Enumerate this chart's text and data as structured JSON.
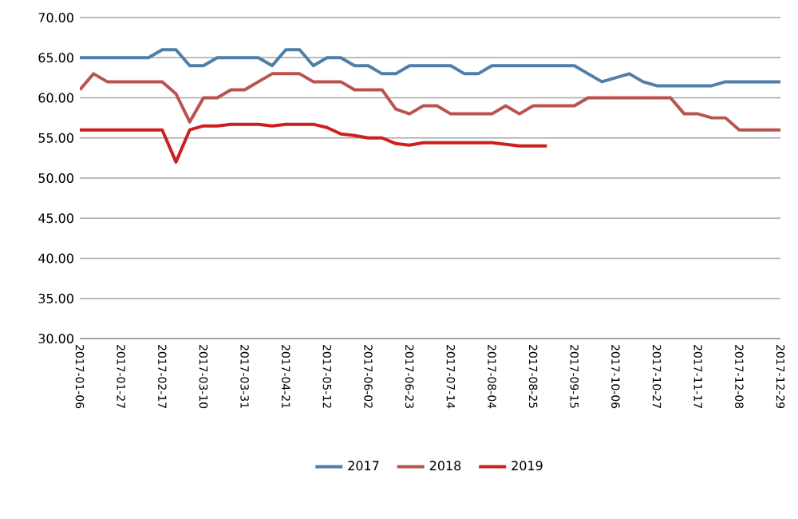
{
  "chart_data": {
    "type": "line",
    "categories": [
      "2017-01-06",
      null,
      null,
      "2017-01-27",
      null,
      null,
      "2017-02-17",
      null,
      null,
      "2017-03-10",
      null,
      null,
      "2017-03-31",
      null,
      null,
      "2017-04-21",
      null,
      null,
      "2017-05-12",
      null,
      null,
      "2017-06-02",
      null,
      null,
      "2017-06-23",
      null,
      null,
      "2017-07-14",
      null,
      null,
      "2017-08-04",
      null,
      null,
      "2017-08-25",
      null,
      null,
      "2017-09-15",
      null,
      null,
      "2017-10-06",
      null,
      null,
      "2017-10-27",
      null,
      null,
      "2017-11-17",
      null,
      null,
      "2017-12-08",
      null,
      null,
      "2017-12-29"
    ],
    "series": [
      {
        "name": "2017",
        "color": "#4f7fa8",
        "values": [
          65,
          65,
          65,
          65,
          65,
          65,
          66,
          66,
          64,
          64,
          65,
          65,
          65,
          65,
          64,
          66,
          66,
          64,
          65,
          65,
          64,
          64,
          63,
          63,
          64,
          64,
          64,
          64,
          63,
          63,
          64,
          64,
          64,
          64,
          64,
          64,
          64,
          63,
          62,
          62.5,
          63,
          62,
          61.5,
          61.5,
          61.5,
          61.5,
          61.5,
          62,
          62,
          62,
          62,
          62
        ]
      },
      {
        "name": "2018",
        "color": "#b85450",
        "values": [
          61,
          63,
          62,
          62,
          62,
          62,
          62,
          60.5,
          57,
          60,
          60,
          61,
          61,
          62,
          63,
          63,
          63,
          62,
          62,
          62,
          61,
          61,
          61,
          58.6,
          58,
          59,
          59,
          58,
          58,
          58,
          58,
          59,
          58,
          59,
          59,
          59,
          59,
          60,
          60,
          60,
          60,
          60,
          60,
          60,
          58,
          58,
          57.5,
          57.5,
          56,
          56,
          56,
          56
        ]
      },
      {
        "name": "2019",
        "color": "#cc1f1f",
        "values": [
          56,
          56,
          56,
          56,
          56,
          56,
          56,
          52,
          56,
          56.5,
          56.5,
          56.7,
          56.7,
          56.7,
          56.5,
          56.7,
          56.7,
          56.7,
          56.3,
          55.5,
          55.3,
          55,
          55,
          54.3,
          54.1,
          54.4,
          54.4,
          54.4,
          54.4,
          54.4,
          54.4,
          54.2,
          54,
          54,
          54,
          null,
          null,
          null,
          null,
          null,
          null,
          null,
          null,
          null,
          null,
          null,
          null,
          null,
          null,
          null,
          null,
          null
        ]
      }
    ],
    "ylim": [
      30,
      70
    ],
    "yticks": [
      {
        "value": 30,
        "label": "30.00"
      },
      {
        "value": 35,
        "label": "35.00"
      },
      {
        "value": 40,
        "label": "40.00"
      },
      {
        "value": 45,
        "label": "45.00"
      },
      {
        "value": 50,
        "label": "50.00"
      },
      {
        "value": 55,
        "label": "55.00"
      },
      {
        "value": 60,
        "label": "60.00"
      },
      {
        "value": 65,
        "label": "65.00"
      },
      {
        "value": 70,
        "label": "70.00"
      }
    ],
    "grid": "y",
    "legend": "bottom",
    "marker": "none",
    "line_style": "solid"
  }
}
